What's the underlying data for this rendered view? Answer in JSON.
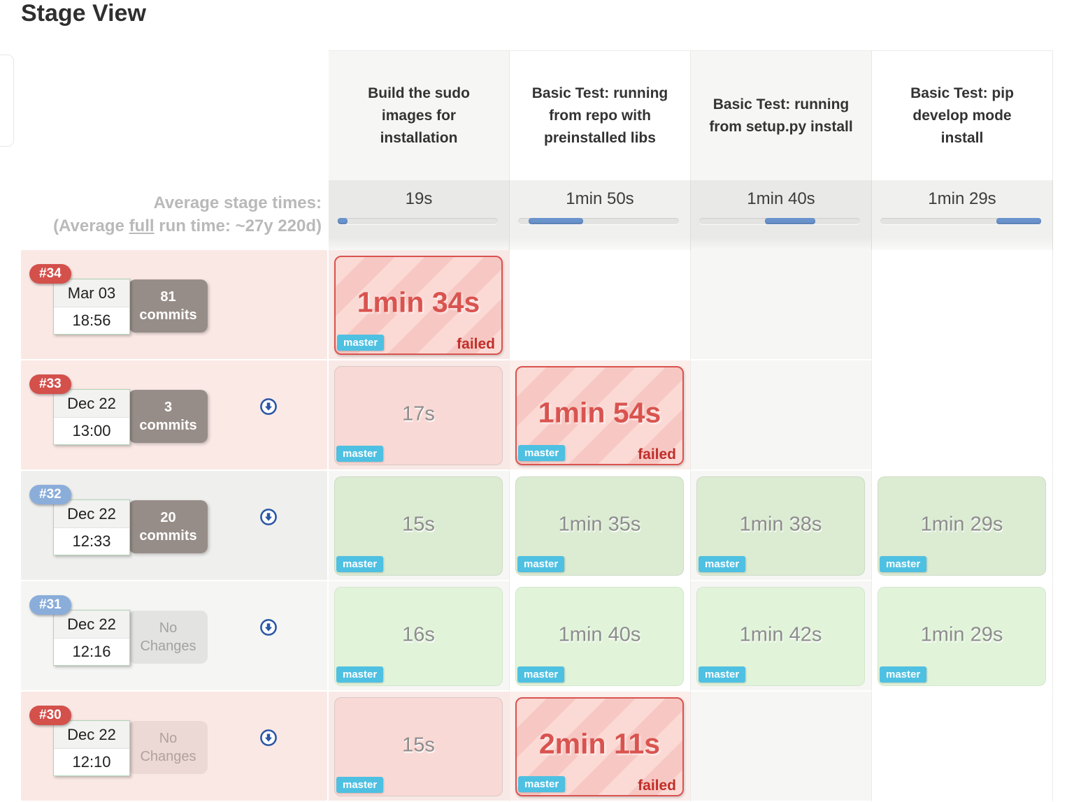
{
  "page": {
    "title": "Stage View"
  },
  "average": {
    "line1": "Average stage times:",
    "line2_prefix": "(Average ",
    "line2_underline": "full",
    "line2_suffix": " run time: ~27y 220d)"
  },
  "stages": [
    {
      "name": "Build the sudo images for installation",
      "avg_time": "19s",
      "bar_start_pct": 0.5,
      "bar_width_pct": 6
    },
    {
      "name": "Basic Test: running from repo with preinstalled libs",
      "avg_time": "1min 50s",
      "bar_start_pct": 6.5,
      "bar_width_pct": 34
    },
    {
      "name": "Basic Test: running from setup.py install",
      "avg_time": "1min 40s",
      "bar_start_pct": 41,
      "bar_width_pct": 31
    },
    {
      "name": "Basic Test: pip develop mode install",
      "avg_time": "1min 29s",
      "bar_start_pct": 72,
      "bar_width_pct": 28
    }
  ],
  "builds": [
    {
      "id": "#34",
      "status": "failed",
      "date": "Mar 03",
      "time": "18:56",
      "changes_line1": "81",
      "changes_line2": "commits",
      "cells": [
        {
          "type": "failed",
          "time": "1min 34s",
          "branch": "master",
          "status_label": "failed"
        },
        {
          "type": "empty"
        },
        {
          "type": "empty"
        },
        {
          "type": "empty"
        }
      ]
    },
    {
      "id": "#33",
      "status": "failed",
      "date": "Dec 22",
      "time": "13:00",
      "changes_line1": "3",
      "changes_line2": "commits",
      "cells": [
        {
          "type": "pink",
          "time": "17s",
          "branch": "master"
        },
        {
          "type": "failed",
          "time": "1min 54s",
          "branch": "master",
          "status_label": "failed"
        },
        {
          "type": "empty"
        },
        {
          "type": "empty"
        }
      ]
    },
    {
      "id": "#32",
      "status": "success",
      "date": "Dec 22",
      "time": "12:33",
      "changes_line1": "20",
      "changes_line2": "commits",
      "cells": [
        {
          "type": "green",
          "time": "15s",
          "branch": "master"
        },
        {
          "type": "green",
          "time": "1min 35s",
          "branch": "master"
        },
        {
          "type": "green",
          "time": "1min 38s",
          "branch": "master"
        },
        {
          "type": "green",
          "time": "1min 29s",
          "branch": "master"
        }
      ]
    },
    {
      "id": "#31",
      "status": "success",
      "date": "Dec 22",
      "time": "12:16",
      "changes_line1": "No",
      "changes_line2": "Changes",
      "cells": [
        {
          "type": "green",
          "time": "16s",
          "branch": "master"
        },
        {
          "type": "green",
          "time": "1min 40s",
          "branch": "master"
        },
        {
          "type": "green",
          "time": "1min 42s",
          "branch": "master"
        },
        {
          "type": "green",
          "time": "1min 29s",
          "branch": "master"
        }
      ]
    },
    {
      "id": "#30",
      "status": "failed",
      "date": "Dec 22",
      "time": "12:10",
      "changes_line1": "No",
      "changes_line2": "Changes",
      "cells": [
        {
          "type": "pink",
          "time": "15s",
          "branch": "master"
        },
        {
          "type": "failed",
          "time": "2min 11s",
          "branch": "master",
          "status_label": "failed"
        },
        {
          "type": "empty"
        },
        {
          "type": "empty"
        }
      ]
    }
  ],
  "colors": {
    "failed_accent": "#d9534f",
    "failed_label_text": "#c12e2a",
    "failed_stripe_a": "#fbdad6",
    "failed_stripe_b": "#f7c8c3",
    "success_cell_bg": "#dcecd3",
    "pink_cell_bg": "#f9d9d5",
    "branch_badge_bg": "#4ec0e2",
    "build_badge_failed": "#d4504b",
    "build_badge_success": "#8aadda",
    "commits_box_bg": "#978d88",
    "avg_bar_fill": "#6a93cc"
  }
}
